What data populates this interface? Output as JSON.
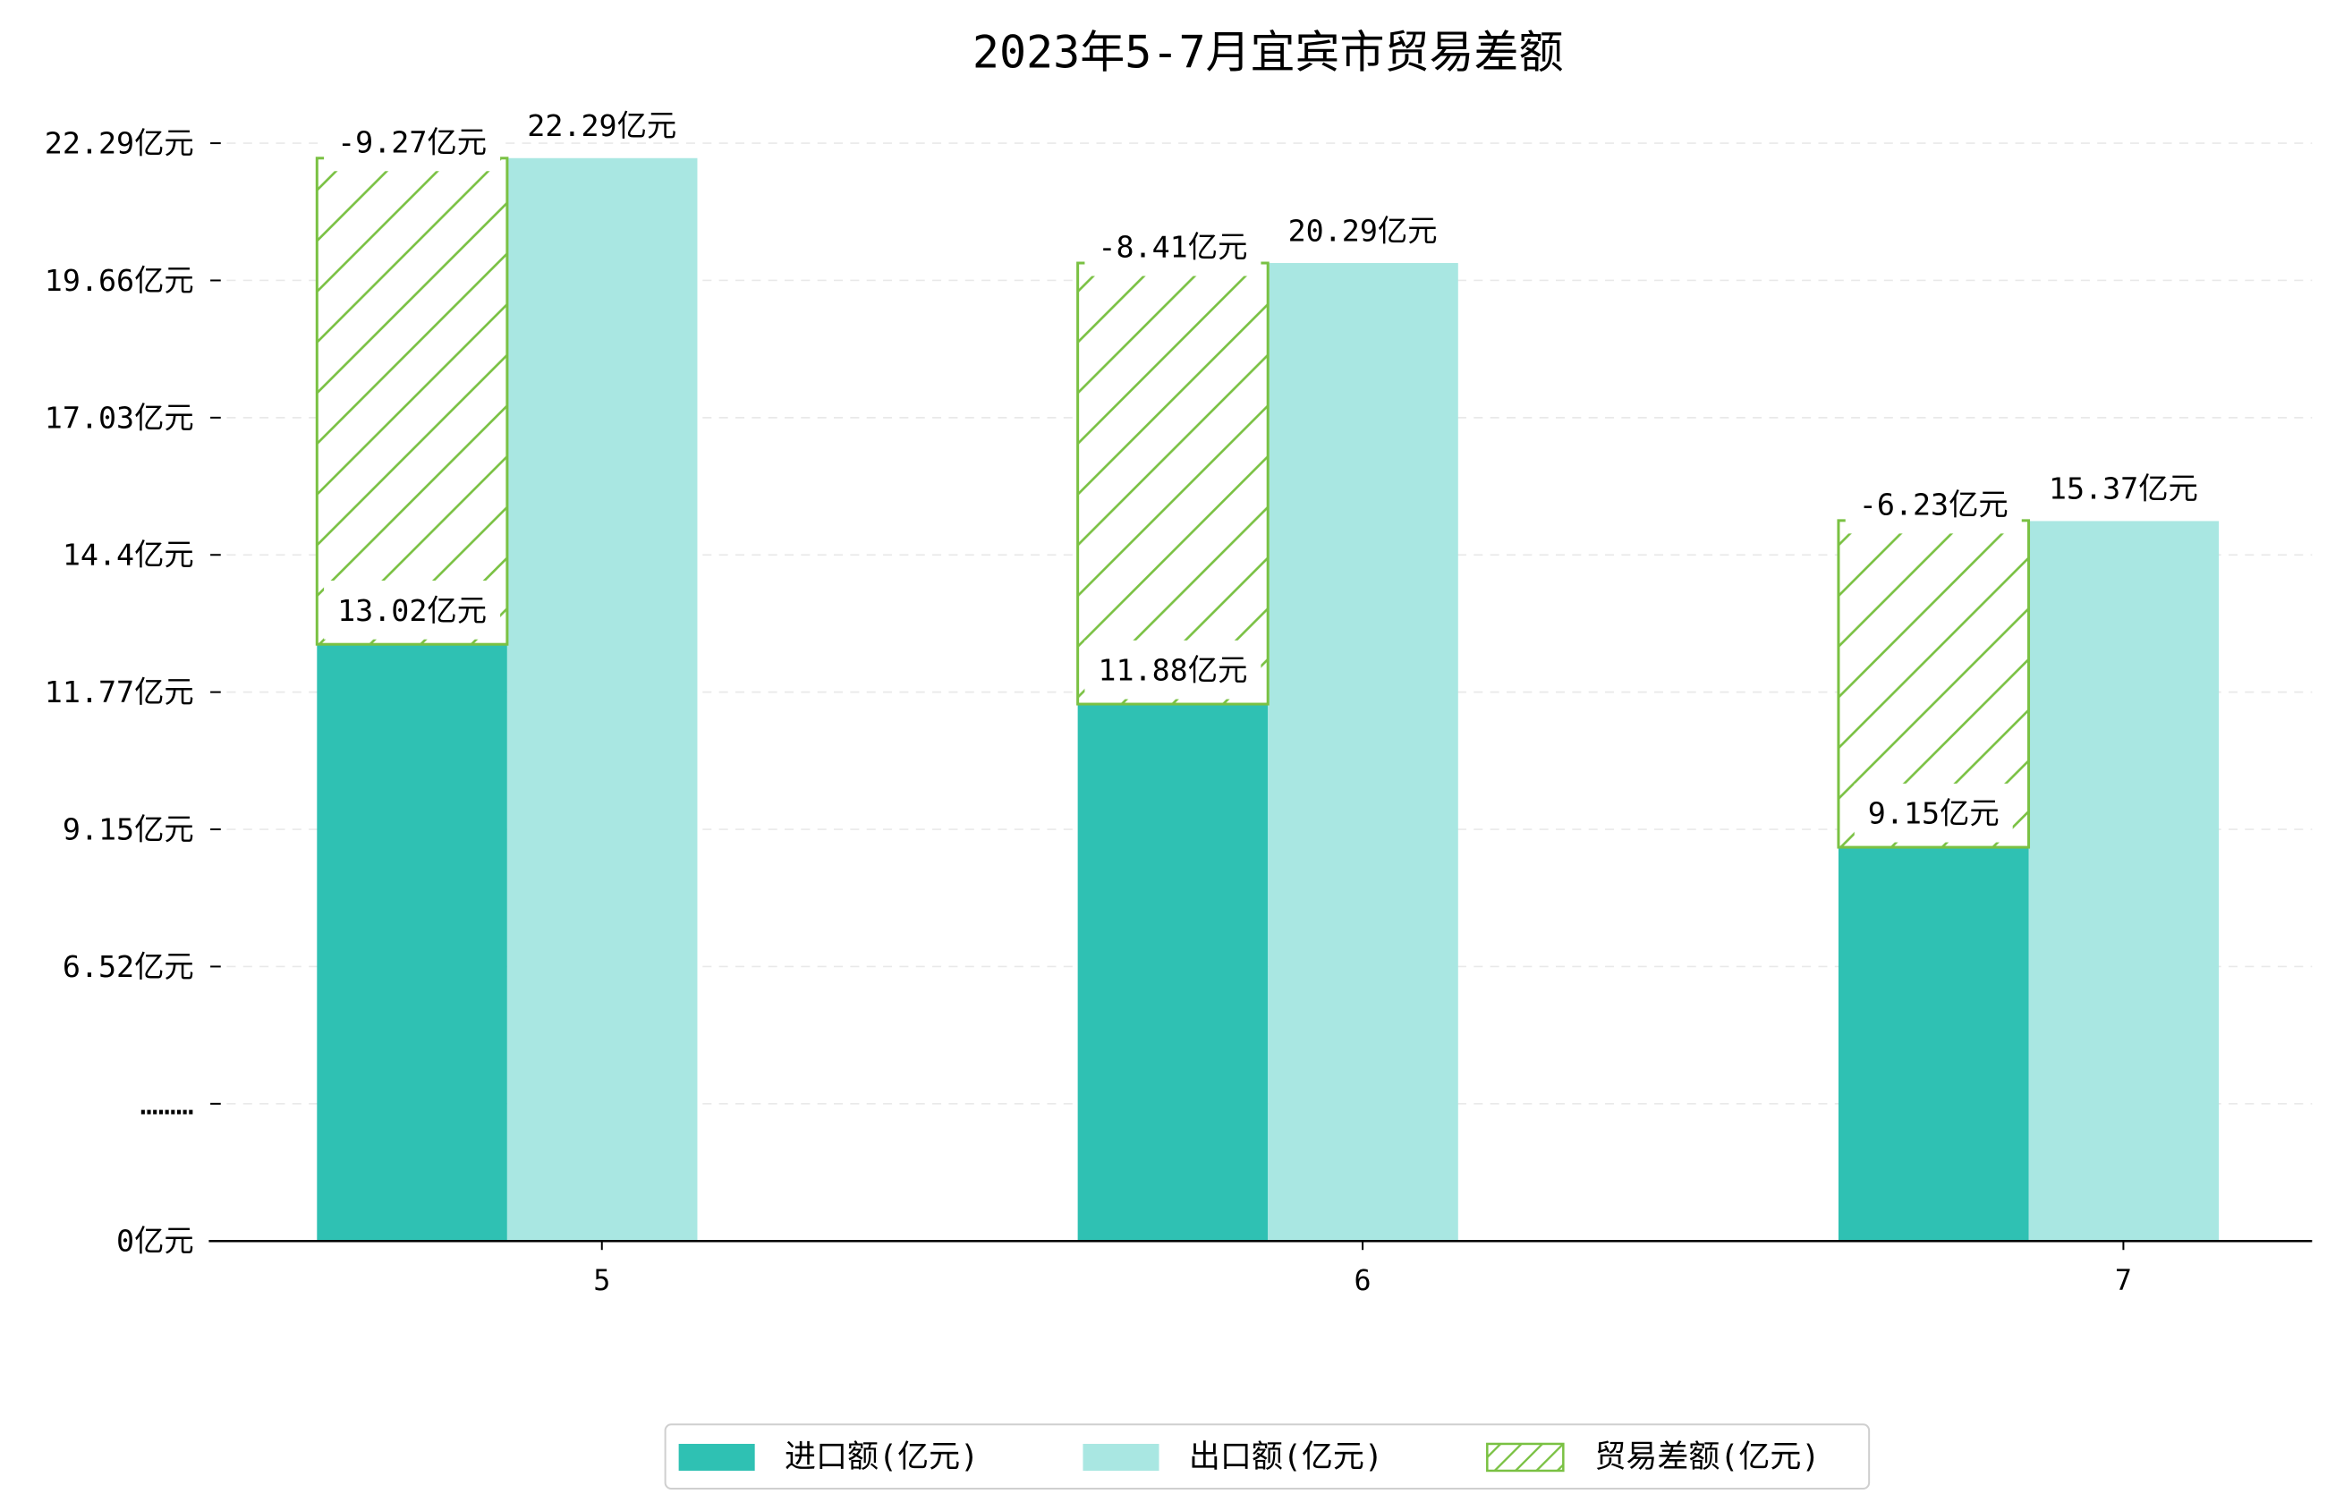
{
  "chart_data": {
    "type": "bar",
    "title": "2023年5-7月宜宾市贸易差额",
    "xlabel": "",
    "ylabel": "",
    "categories": [
      "5",
      "6",
      "7"
    ],
    "unit": "亿元",
    "series": [
      {
        "name": "进口额(亿元)",
        "values": [
          13.02,
          11.88,
          9.15
        ],
        "color": "#2fc1b3"
      },
      {
        "name": "出口额(亿元)",
        "values": [
          22.29,
          20.29,
          15.37
        ],
        "color": "#a9e7e2"
      },
      {
        "name": "贸易差额(亿元)",
        "values": [
          -9.27,
          -8.41,
          -6.23
        ],
        "color": "#7ac143",
        "hatched": true
      }
    ],
    "yticks": [
      "22.29亿元",
      "19.66亿元",
      "17.03亿元",
      "14.4亿元",
      "11.77亿元",
      "9.15亿元",
      "6.52亿元",
      "………",
      "0亿元"
    ],
    "axis_break": true,
    "grid": true,
    "legend_position": "bottom-center"
  }
}
